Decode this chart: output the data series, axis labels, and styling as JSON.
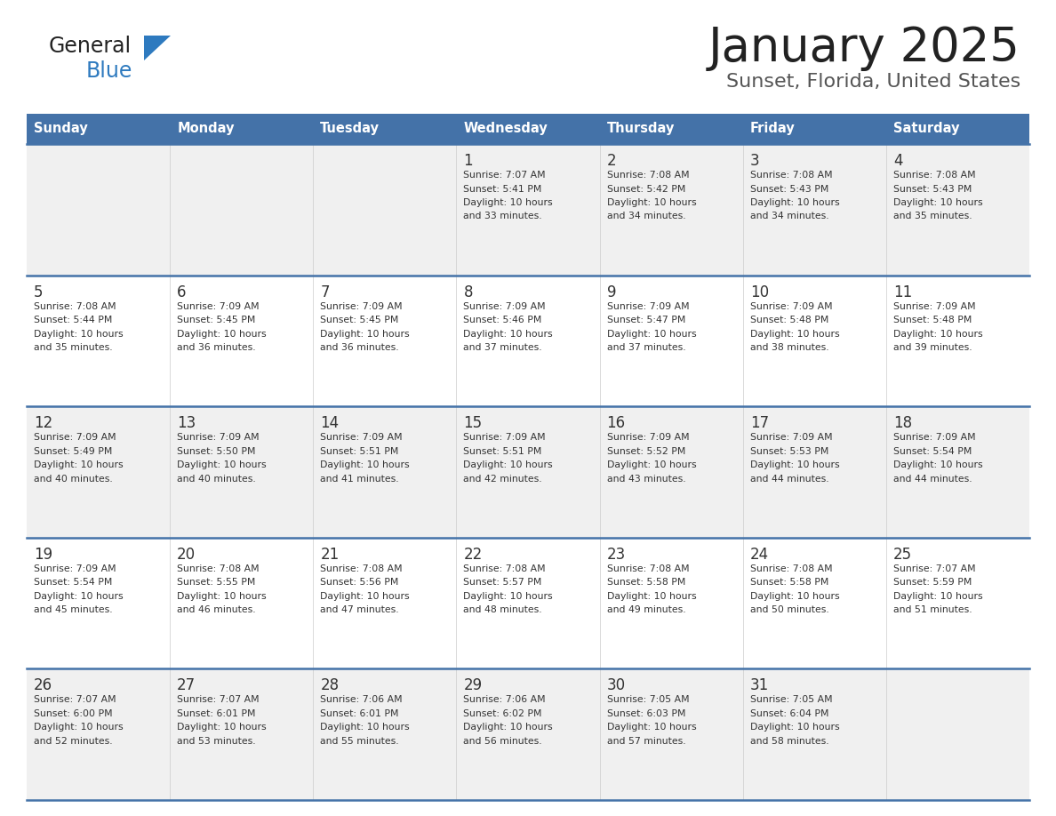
{
  "title": "January 2025",
  "subtitle": "Sunset, Florida, United States",
  "days_of_week": [
    "Sunday",
    "Monday",
    "Tuesday",
    "Wednesday",
    "Thursday",
    "Friday",
    "Saturday"
  ],
  "header_bg": "#4472a8",
  "header_text": "#ffffff",
  "cell_bg_odd": "#f0f0f0",
  "cell_bg_even": "#ffffff",
  "row_line_color": "#4472a8",
  "text_color": "#333333",
  "calendar": [
    [
      {
        "day": null
      },
      {
        "day": null
      },
      {
        "day": null
      },
      {
        "day": 1,
        "sunrise": "7:07 AM",
        "sunset": "5:41 PM",
        "daylight": "10 hours and 33 minutes."
      },
      {
        "day": 2,
        "sunrise": "7:08 AM",
        "sunset": "5:42 PM",
        "daylight": "10 hours and 34 minutes."
      },
      {
        "day": 3,
        "sunrise": "7:08 AM",
        "sunset": "5:43 PM",
        "daylight": "10 hours and 34 minutes."
      },
      {
        "day": 4,
        "sunrise": "7:08 AM",
        "sunset": "5:43 PM",
        "daylight": "10 hours and 35 minutes."
      }
    ],
    [
      {
        "day": 5,
        "sunrise": "7:08 AM",
        "sunset": "5:44 PM",
        "daylight": "10 hours and 35 minutes."
      },
      {
        "day": 6,
        "sunrise": "7:09 AM",
        "sunset": "5:45 PM",
        "daylight": "10 hours and 36 minutes."
      },
      {
        "day": 7,
        "sunrise": "7:09 AM",
        "sunset": "5:45 PM",
        "daylight": "10 hours and 36 minutes."
      },
      {
        "day": 8,
        "sunrise": "7:09 AM",
        "sunset": "5:46 PM",
        "daylight": "10 hours and 37 minutes."
      },
      {
        "day": 9,
        "sunrise": "7:09 AM",
        "sunset": "5:47 PM",
        "daylight": "10 hours and 37 minutes."
      },
      {
        "day": 10,
        "sunrise": "7:09 AM",
        "sunset": "5:48 PM",
        "daylight": "10 hours and 38 minutes."
      },
      {
        "day": 11,
        "sunrise": "7:09 AM",
        "sunset": "5:48 PM",
        "daylight": "10 hours and 39 minutes."
      }
    ],
    [
      {
        "day": 12,
        "sunrise": "7:09 AM",
        "sunset": "5:49 PM",
        "daylight": "10 hours and 40 minutes."
      },
      {
        "day": 13,
        "sunrise": "7:09 AM",
        "sunset": "5:50 PM",
        "daylight": "10 hours and 40 minutes."
      },
      {
        "day": 14,
        "sunrise": "7:09 AM",
        "sunset": "5:51 PM",
        "daylight": "10 hours and 41 minutes."
      },
      {
        "day": 15,
        "sunrise": "7:09 AM",
        "sunset": "5:51 PM",
        "daylight": "10 hours and 42 minutes."
      },
      {
        "day": 16,
        "sunrise": "7:09 AM",
        "sunset": "5:52 PM",
        "daylight": "10 hours and 43 minutes."
      },
      {
        "day": 17,
        "sunrise": "7:09 AM",
        "sunset": "5:53 PM",
        "daylight": "10 hours and 44 minutes."
      },
      {
        "day": 18,
        "sunrise": "7:09 AM",
        "sunset": "5:54 PM",
        "daylight": "10 hours and 44 minutes."
      }
    ],
    [
      {
        "day": 19,
        "sunrise": "7:09 AM",
        "sunset": "5:54 PM",
        "daylight": "10 hours and 45 minutes."
      },
      {
        "day": 20,
        "sunrise": "7:08 AM",
        "sunset": "5:55 PM",
        "daylight": "10 hours and 46 minutes."
      },
      {
        "day": 21,
        "sunrise": "7:08 AM",
        "sunset": "5:56 PM",
        "daylight": "10 hours and 47 minutes."
      },
      {
        "day": 22,
        "sunrise": "7:08 AM",
        "sunset": "5:57 PM",
        "daylight": "10 hours and 48 minutes."
      },
      {
        "day": 23,
        "sunrise": "7:08 AM",
        "sunset": "5:58 PM",
        "daylight": "10 hours and 49 minutes."
      },
      {
        "day": 24,
        "sunrise": "7:08 AM",
        "sunset": "5:58 PM",
        "daylight": "10 hours and 50 minutes."
      },
      {
        "day": 25,
        "sunrise": "7:07 AM",
        "sunset": "5:59 PM",
        "daylight": "10 hours and 51 minutes."
      }
    ],
    [
      {
        "day": 26,
        "sunrise": "7:07 AM",
        "sunset": "6:00 PM",
        "daylight": "10 hours and 52 minutes."
      },
      {
        "day": 27,
        "sunrise": "7:07 AM",
        "sunset": "6:01 PM",
        "daylight": "10 hours and 53 minutes."
      },
      {
        "day": 28,
        "sunrise": "7:06 AM",
        "sunset": "6:01 PM",
        "daylight": "10 hours and 55 minutes."
      },
      {
        "day": 29,
        "sunrise": "7:06 AM",
        "sunset": "6:02 PM",
        "daylight": "10 hours and 56 minutes."
      },
      {
        "day": 30,
        "sunrise": "7:05 AM",
        "sunset": "6:03 PM",
        "daylight": "10 hours and 57 minutes."
      },
      {
        "day": 31,
        "sunrise": "7:05 AM",
        "sunset": "6:04 PM",
        "daylight": "10 hours and 58 minutes."
      },
      {
        "day": null
      }
    ]
  ],
  "logo_general_color": "#222222",
  "logo_blue_color": "#2e7abf",
  "fig_width": 11.88,
  "fig_height": 9.18,
  "dpi": 100
}
